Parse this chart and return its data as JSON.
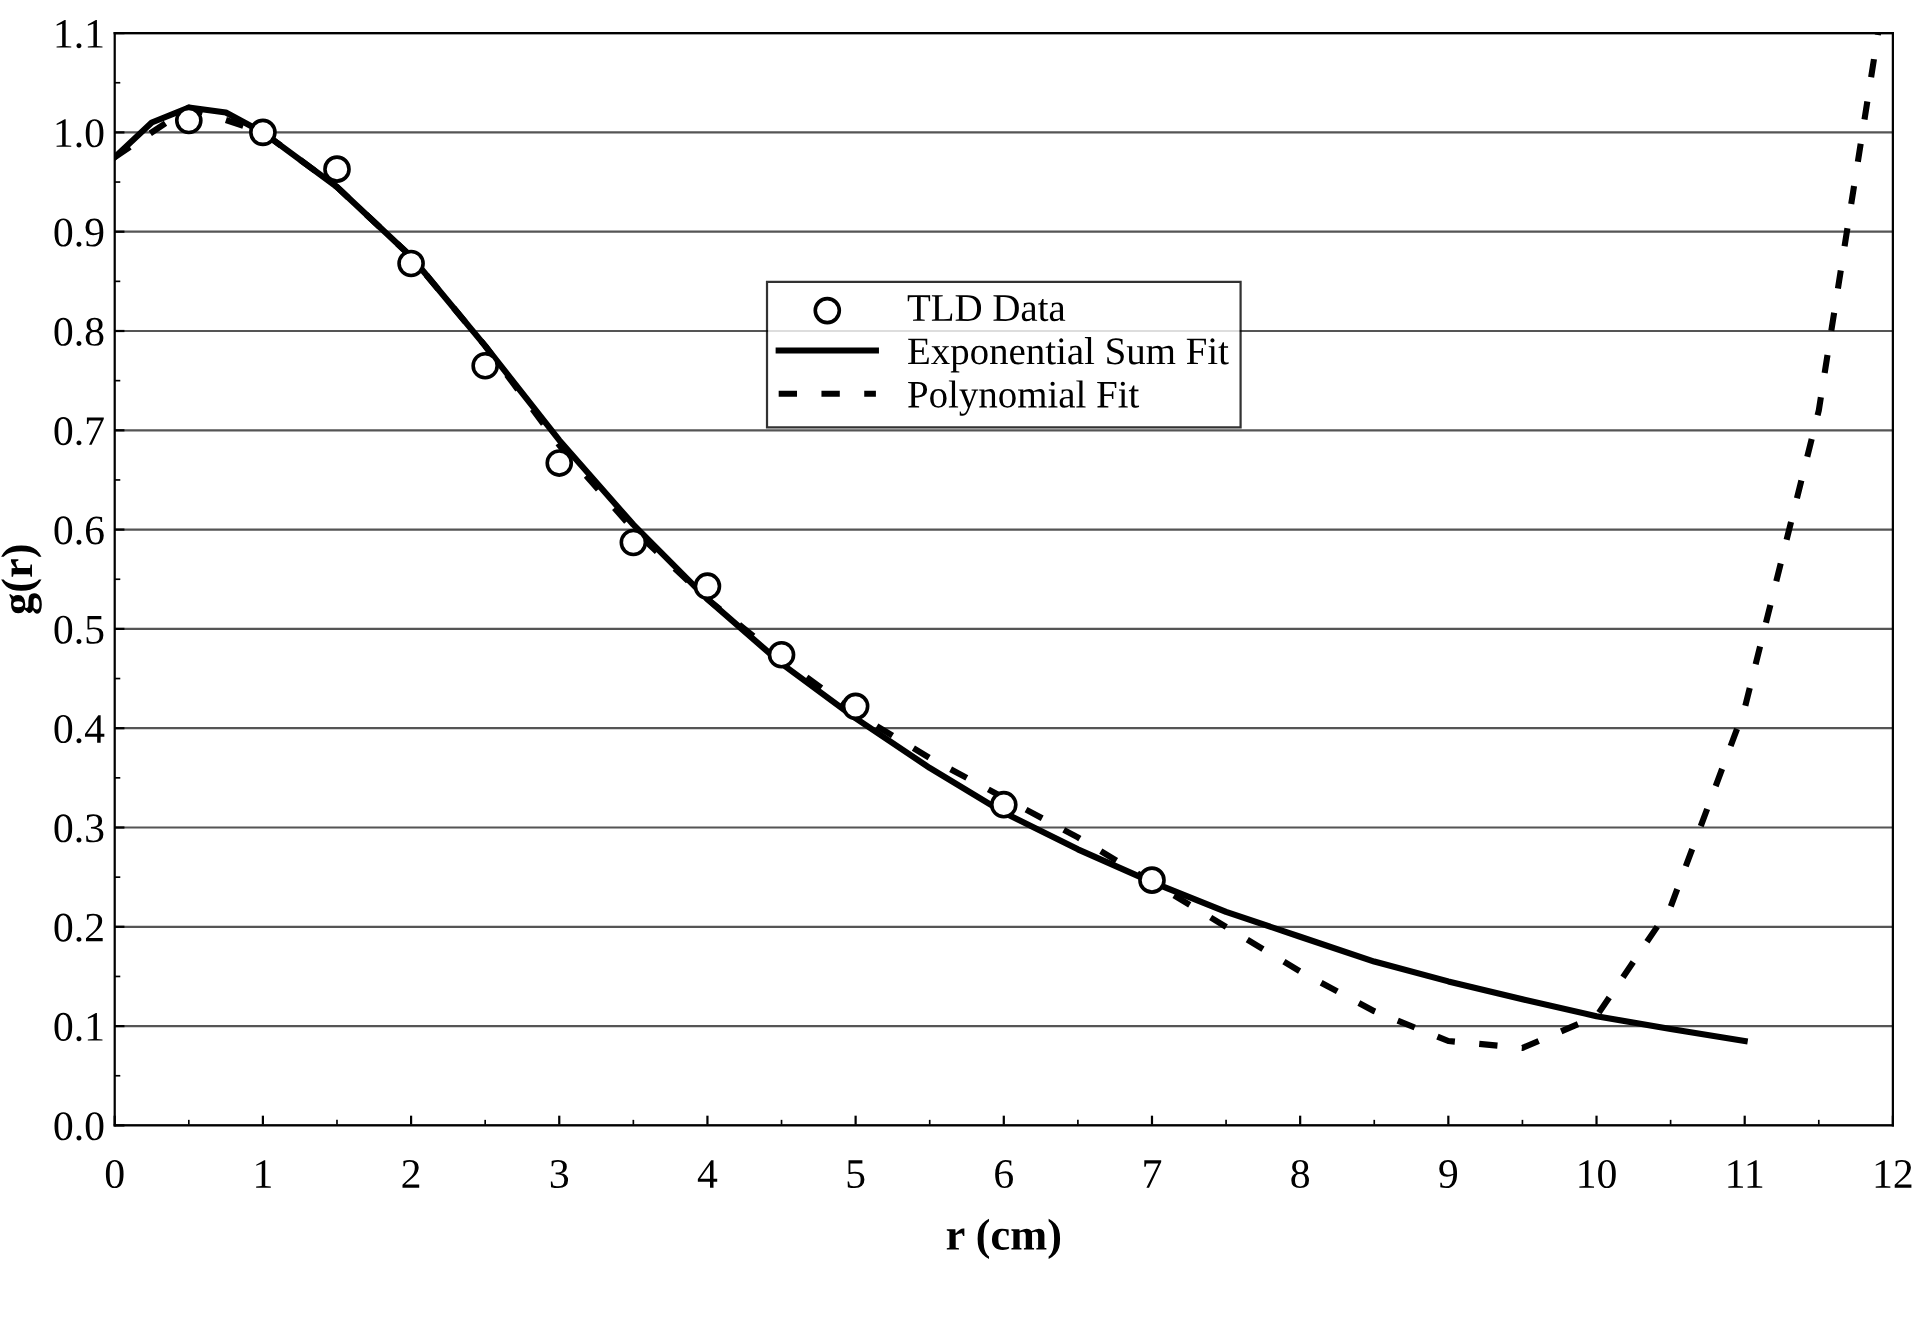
{
  "chart_data": {
    "type": "line",
    "xlabel": "r (cm)",
    "ylabel": "g(r)",
    "xlim": [
      0,
      12
    ],
    "ylim": [
      0,
      1.1
    ],
    "xticks": [
      0,
      1,
      2,
      3,
      4,
      5,
      6,
      7,
      8,
      9,
      10,
      11,
      12
    ],
    "yticks": [
      {
        "value": 0,
        "label": "0.0"
      },
      {
        "value": 0.1,
        "label": "0.1"
      },
      {
        "value": 0.2,
        "label": "0.2"
      },
      {
        "value": 0.3,
        "label": "0.3"
      },
      {
        "value": 0.4,
        "label": "0.4"
      },
      {
        "value": 0.5,
        "label": "0.5"
      },
      {
        "value": 0.6,
        "label": "0.6"
      },
      {
        "value": 0.7,
        "label": "0.7"
      },
      {
        "value": 0.8,
        "label": "0.8"
      },
      {
        "value": 0.9,
        "label": "0.9"
      },
      {
        "value": 1.0,
        "label": "1.0"
      },
      {
        "value": 1.1,
        "label": "1.1"
      }
    ],
    "grid": "y",
    "legend": "top",
    "series": [
      {
        "name": "TLD Data",
        "type": "scatter",
        "marker": "circle",
        "color": "#000000",
        "x": [
          0.5,
          1,
          1.5,
          2,
          2.5,
          3,
          3.5,
          4,
          4.5,
          5,
          6,
          7
        ],
        "values": [
          1.012,
          1.0,
          0.963,
          0.868,
          0.765,
          0.667,
          0.587,
          0.543,
          0.474,
          0.422,
          0.323,
          0.247
        ]
      },
      {
        "name": "Exponential Sum Fit",
        "line_style": "solid",
        "color": "#000000",
        "x": [
          0,
          0.25,
          0.5,
          0.75,
          1,
          1.5,
          2,
          2.5,
          3,
          3.5,
          4,
          4.5,
          5,
          5.5,
          6,
          6.5,
          7,
          7.5,
          8,
          8.5,
          9,
          9.5,
          10,
          10.5,
          11
        ],
        "values": [
          0.975,
          1.01,
          1.025,
          1.02,
          1.0,
          0.945,
          0.875,
          0.785,
          0.69,
          0.605,
          0.53,
          0.465,
          0.41,
          0.36,
          0.315,
          0.278,
          0.245,
          0.215,
          0.19,
          0.165,
          0.145,
          0.127,
          0.11,
          0.097,
          0.085
        ]
      },
      {
        "name": "Polynomial Fit",
        "line_style": "dashed",
        "color": "#000000",
        "x": [
          0,
          0.5,
          1,
          1.5,
          2,
          2.5,
          3,
          3.5,
          4,
          4.5,
          5,
          5.5,
          6,
          6.5,
          7,
          7.5,
          8,
          8.5,
          9,
          9.5,
          10,
          10.5,
          11,
          11.5,
          11.9
        ],
        "values": [
          0.975,
          1.025,
          1.0,
          0.945,
          0.875,
          0.785,
          0.685,
          0.6,
          0.53,
          0.47,
          0.415,
          0.37,
          0.33,
          0.29,
          0.245,
          0.2,
          0.155,
          0.115,
          0.085,
          0.078,
          0.11,
          0.22,
          0.42,
          0.72,
          1.1
        ]
      }
    ]
  }
}
